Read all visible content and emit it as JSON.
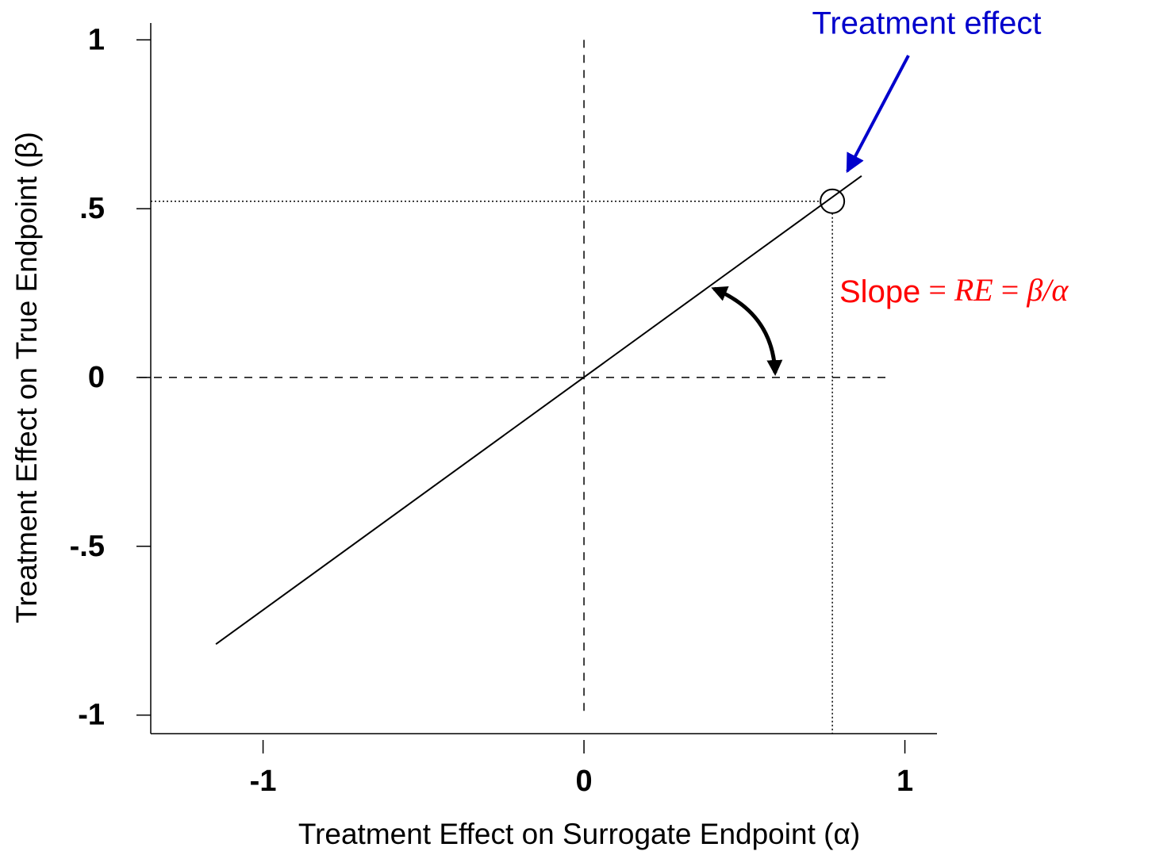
{
  "chart_data": {
    "type": "line",
    "title": "Treatment effect",
    "title_color": "#0000cc",
    "annotation": {
      "parts": [
        "Slope",
        " = ",
        "RE",
        " = ",
        "β/α"
      ],
      "color": "#ff0000"
    },
    "xlabel": "Treatment Effect on Surrogate Endpoint (α)",
    "ylabel": "Treatment Effect on True Endpoint (β)",
    "x": [
      -1.147,
      0.865
    ],
    "values": [
      -0.79,
      0.597
    ],
    "color": "#000000",
    "point": {
      "x": 0.774,
      "y": 0.522
    },
    "xlim": [
      -1.35,
      1.1
    ],
    "ylim": [
      -1.055,
      1.05
    ],
    "xticks": [
      -1,
      0,
      1
    ],
    "yticks": [
      1,
      {
        "value": 0.5,
        "label": ".5"
      },
      0,
      {
        "value": -0.5,
        "label": "-.5"
      },
      -1
    ]
  }
}
